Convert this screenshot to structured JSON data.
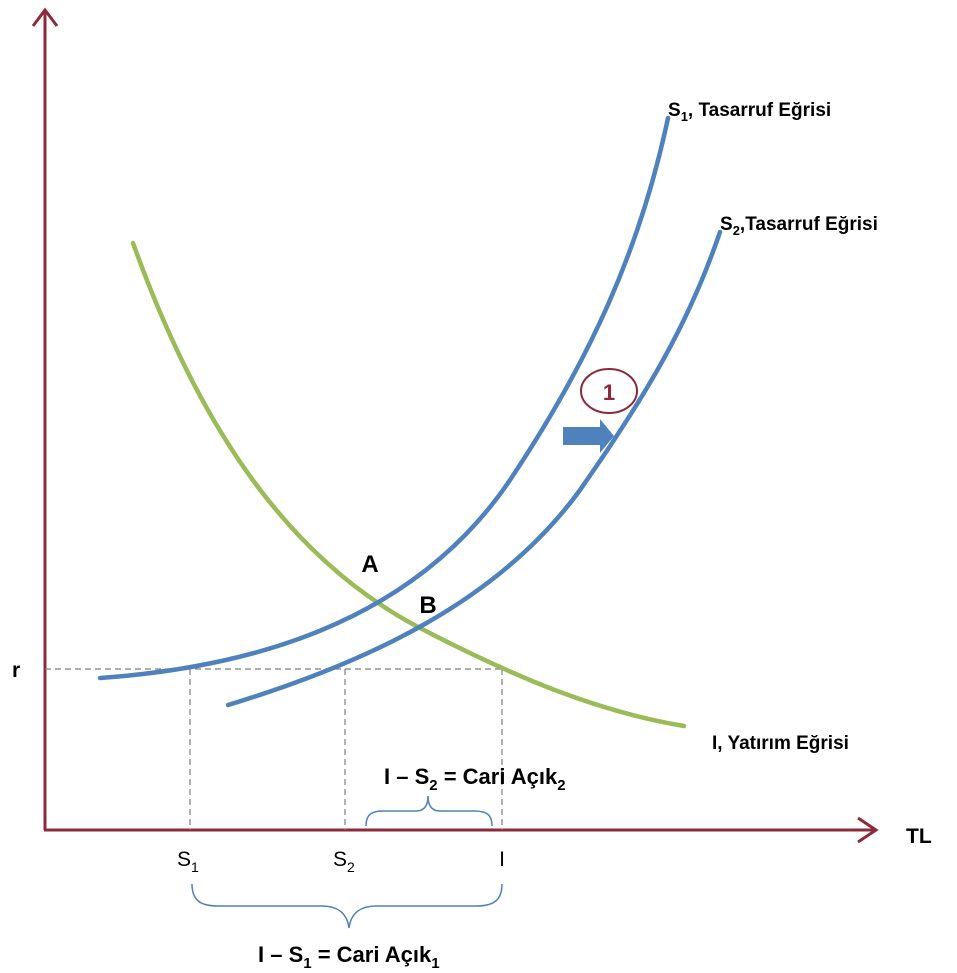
{
  "axes": {
    "y_label": "r",
    "x_label": "TL"
  },
  "curves": {
    "s1": {
      "label_main": "S",
      "label_sub": "1",
      "label_rest": ", Tasarruf Eğrisi"
    },
    "s2": {
      "label_main": "S",
      "label_sub": "2",
      "label_rest": ",Tasarruf Eğrisi"
    },
    "investment": {
      "label": "I, Yatırım Eğrisi"
    }
  },
  "points": {
    "a": "A",
    "b": "B"
  },
  "shift_marker": {
    "number": "1"
  },
  "x_ticks": {
    "s1": {
      "main": "S",
      "sub": "1"
    },
    "s2": {
      "main": "S",
      "sub": "2"
    },
    "i": "I"
  },
  "gaps": {
    "gap2": {
      "prefix": "I – S",
      "sub": "2",
      "mid": " = Cari Açık",
      "sub2": "2"
    },
    "gap1": {
      "prefix": "I – S",
      "sub": "1",
      "mid": " = Cari Açık",
      "sub2": "1"
    }
  },
  "colors": {
    "axis": "#8b2a3a",
    "saving_curve": "#4f81bd",
    "investment_curve": "#9bbb59",
    "marker_circle": "#8b2a3a",
    "marker_number": "#8b2a3a",
    "shift_arrow": "#4f81bd",
    "dashed_guide": "#7f7f7f"
  }
}
